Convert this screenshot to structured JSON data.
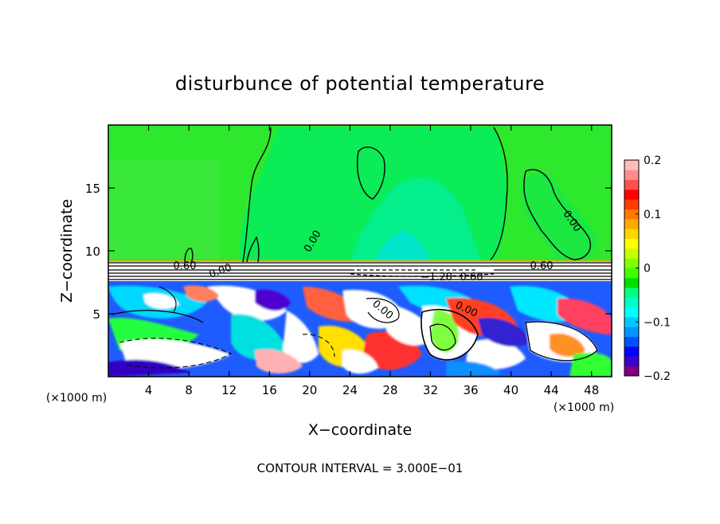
{
  "chart_data": {
    "type": "heatmap",
    "title": "disturbunce of potential temperature",
    "xlabel": "X−coordinate",
    "ylabel": "Z−coordinate",
    "x_unit": "(×1000 m)",
    "x_unit_right": "(×1000 m)",
    "xlim": [
      0,
      50
    ],
    "ylim": [
      0,
      20
    ],
    "x_ticks": [
      4,
      8,
      12,
      16,
      20,
      24,
      28,
      32,
      36,
      40,
      44,
      48
    ],
    "x_tick_labels": [
      "4",
      "8",
      "12",
      "16",
      "20",
      "24",
      "28",
      "32",
      "36",
      "40",
      "44",
      "48"
    ],
    "y_ticks": [
      5,
      10,
      15
    ],
    "y_tick_labels": [
      "5",
      "10",
      "15"
    ],
    "colorbar": {
      "min": -0.2,
      "max": 0.2,
      "ticks": [
        0.2,
        0.1,
        0,
        -0.1,
        -0.2
      ],
      "tick_labels": [
        "0.2",
        "0.1",
        "0",
        "−0.1",
        "−0.2"
      ],
      "colors": [
        "#800080",
        "#3c00c8",
        "#0000ff",
        "#0050ff",
        "#0096ff",
        "#00c8ff",
        "#00ffff",
        "#00ffc8",
        "#00ff80",
        "#00e000",
        "#40ff00",
        "#80ff00",
        "#c8ff00",
        "#ffff00",
        "#ffd700",
        "#ffaa00",
        "#ff7800",
        "#ff3c00",
        "#ff0000",
        "#ff5050",
        "#ff8c8c",
        "#ffbcbc"
      ]
    },
    "contour_labels": [
      "0.60",
      "0.60",
      "0.00",
      "0.00",
      "0.00",
      "0.00",
      "0.00",
      "−1.20",
      "0.60"
    ],
    "footer": "CONTOUR INTERVAL = 3.000E−01"
  }
}
